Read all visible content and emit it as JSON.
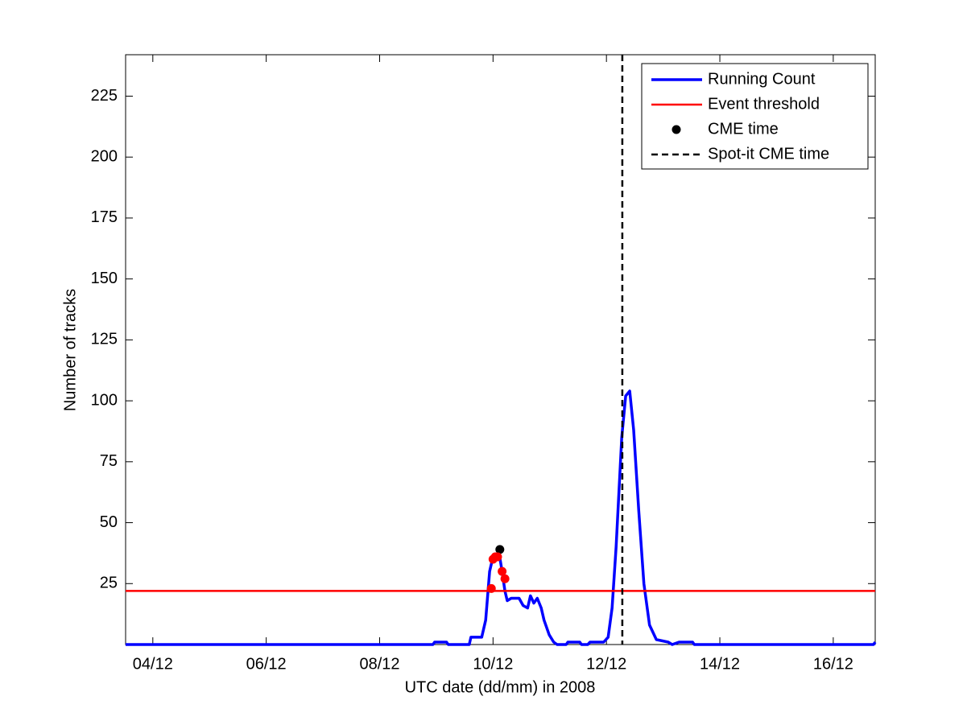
{
  "chart_data": {
    "type": "line",
    "xlabel": "UTC date (dd/mm) in 2008",
    "ylabel": "Number of tracks",
    "xlim": [
      3.52,
      16.74
    ],
    "xticks": [
      {
        "value": 4,
        "label": "04/12"
      },
      {
        "value": 6,
        "label": "06/12"
      },
      {
        "value": 8,
        "label": "08/12"
      },
      {
        "value": 10,
        "label": "10/12"
      },
      {
        "value": 12,
        "label": "12/12"
      },
      {
        "value": 14,
        "label": "14/12"
      },
      {
        "value": 16,
        "label": "16/12"
      }
    ],
    "ylim": [
      0,
      242
    ],
    "yticks": [
      25,
      50,
      75,
      100,
      125,
      150,
      175,
      200,
      225
    ],
    "legend": "upper right",
    "series": [
      {
        "name": "Running Count",
        "style": "line",
        "color": "#0000ff",
        "x": [
          3.52,
          8.94,
          8.97,
          9.18,
          9.21,
          9.58,
          9.61,
          9.8,
          9.87,
          9.94,
          10.0,
          10.11,
          10.16,
          10.21,
          10.25,
          10.32,
          10.46,
          10.53,
          10.61,
          10.66,
          10.72,
          10.78,
          10.85,
          10.9,
          10.99,
          11.07,
          11.13,
          11.29,
          11.32,
          11.53,
          11.56,
          11.67,
          11.71,
          11.95,
          12.03,
          12.1,
          12.17,
          12.27,
          12.34,
          12.41,
          12.48,
          12.57,
          12.66,
          12.76,
          12.88,
          13.09,
          13.16,
          13.28,
          13.52,
          13.55,
          16.71,
          16.74
        ],
        "values": [
          0,
          0,
          1,
          1,
          0,
          0,
          3,
          3,
          10,
          30,
          36,
          37,
          30,
          22,
          18,
          19,
          19,
          16,
          15,
          20,
          17,
          19,
          15,
          10,
          4,
          1,
          0,
          0,
          1,
          1,
          0,
          0,
          1,
          1,
          3,
          15,
          40,
          85,
          102,
          104,
          88,
          55,
          25,
          8,
          2,
          1,
          0,
          1,
          1,
          0,
          0,
          1
        ]
      },
      {
        "name": "Event threshold",
        "style": "hline",
        "color": "#ff0000",
        "values": [
          22
        ]
      },
      {
        "name": "CME time",
        "style": "marker",
        "color": "#000000",
        "x": [
          10.12
        ],
        "values": [
          39
        ]
      },
      {
        "name": "Spot-it CME time",
        "style": "vline",
        "color": "#000000",
        "dashed": true,
        "x": [
          12.28
        ]
      },
      {
        "style": "marker",
        "color": "#ff0000",
        "x": [
          9.97,
          10.0,
          10.04,
          10.08,
          10.16,
          10.21
        ],
        "values": [
          23,
          35,
          36,
          36,
          30,
          27
        ]
      }
    ]
  }
}
